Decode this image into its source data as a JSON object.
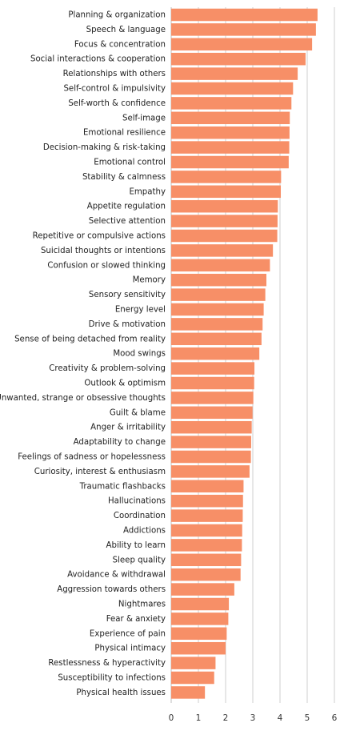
{
  "chart_data": {
    "type": "bar",
    "orientation": "horizontal",
    "color": "#F78F67",
    "grid": true,
    "xlim": [
      0,
      6
    ],
    "x_ticks": [
      "0",
      "1",
      "2",
      "3",
      "4",
      "5",
      "6"
    ],
    "xlabel": "",
    "ylabel": "",
    "title": "",
    "categories": [
      "Planning & organization",
      "Speech & language",
      "Focus & concentration",
      "Social interactions & cooperation",
      "Relationships with others",
      "Self-control & impulsivity",
      "Self-worth & confidence",
      "Self-image",
      "Emotional resilience",
      "Decision-making & risk-taking",
      "Emotional control",
      "Stability & calmness",
      "Empathy",
      "Appetite regulation",
      "Selective attention",
      "Repetitive or compulsive actions",
      "Suicidal thoughts or intentions",
      "Confusion or slowed thinking",
      "Memory",
      "Sensory sensitivity",
      "Energy level",
      "Drive & motivation",
      "Sense of being detached from reality",
      "Mood swings",
      "Creativity & problem-solving",
      "Outlook & optimism",
      "Unwanted, strange or obsessive thoughts",
      "Guilt & blame",
      "Anger & irritability",
      "Adaptability to change",
      "Feelings of sadness or hopelessness",
      "Curiosity, interest & enthusiasm",
      "Traumatic flashbacks",
      "Hallucinations",
      "Coordination",
      "Addictions",
      "Ability to learn",
      "Sleep quality",
      "Avoidance & withdrawal",
      "Aggression towards others",
      "Nightmares",
      "Fear & anxiety",
      "Experience of pain",
      "Physical intimacy",
      "Restlessness & hyperactivity",
      "Susceptibility to infections",
      "Physical health issues"
    ],
    "values": [
      5.38,
      5.32,
      5.18,
      4.94,
      4.65,
      4.48,
      4.42,
      4.36,
      4.35,
      4.34,
      4.32,
      4.04,
      4.03,
      3.92,
      3.91,
      3.9,
      3.74,
      3.63,
      3.5,
      3.46,
      3.4,
      3.36,
      3.32,
      3.24,
      3.06,
      3.05,
      3.02,
      2.99,
      2.96,
      2.94,
      2.93,
      2.88,
      2.66,
      2.64,
      2.63,
      2.61,
      2.6,
      2.57,
      2.55,
      2.32,
      2.12,
      2.1,
      2.04,
      2.0,
      1.63,
      1.58,
      1.24
    ]
  }
}
